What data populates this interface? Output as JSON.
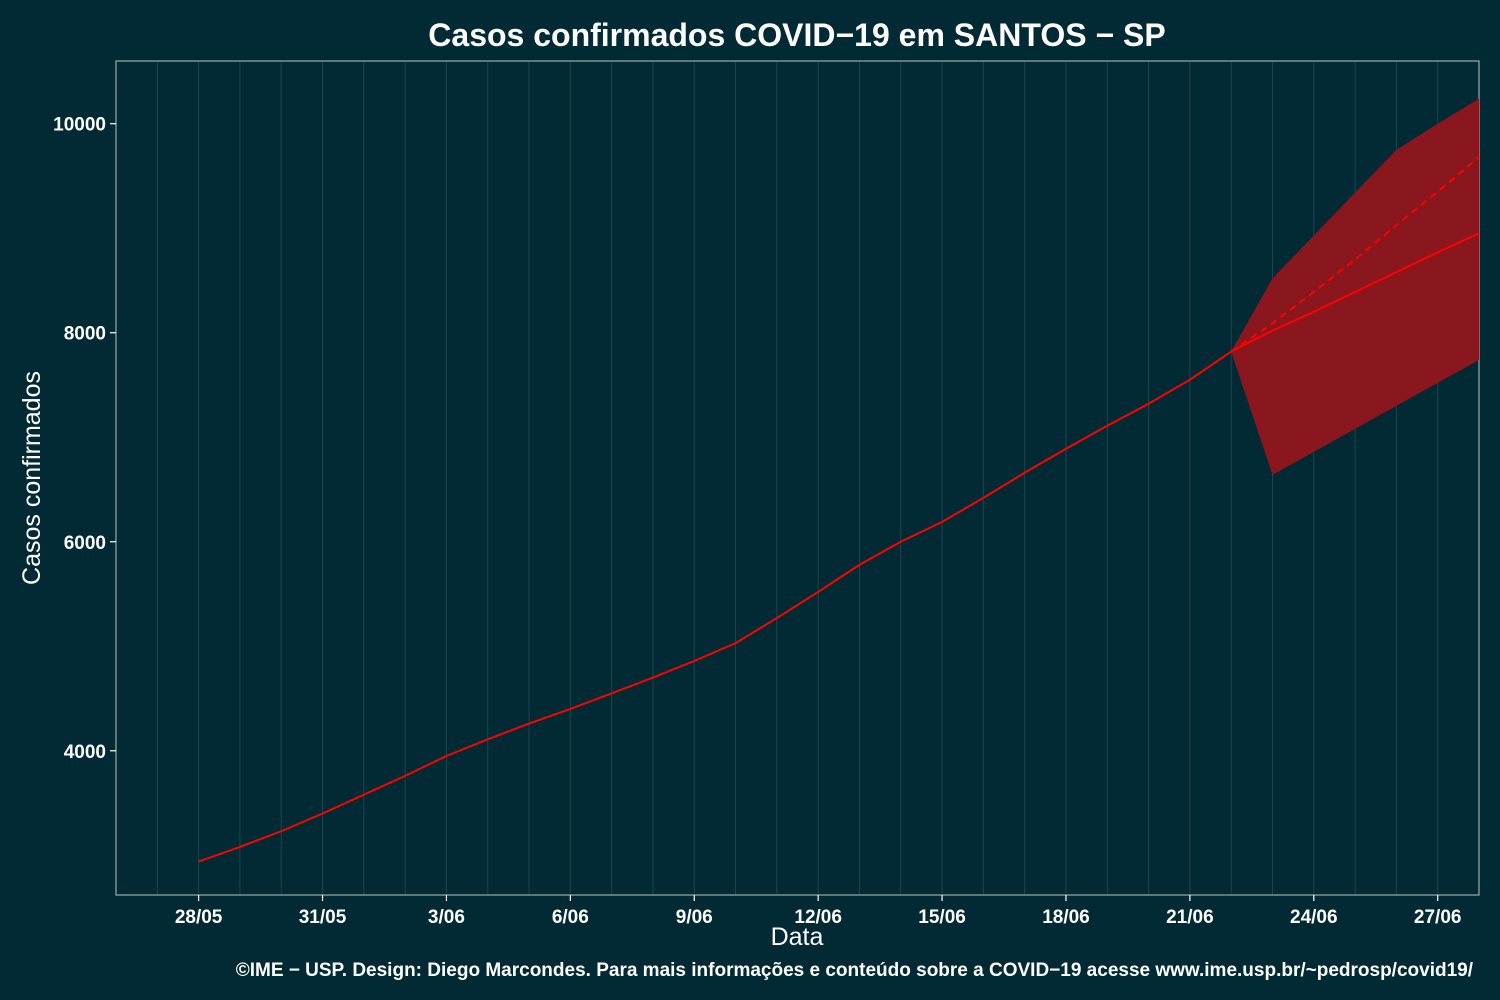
{
  "chart_data": {
    "type": "line",
    "title": "Casos confirmados COVID−19 em SANTOS − SP",
    "xlabel": "Data",
    "ylabel": "Casos confirmados",
    "caption": "©IME − USP. Design: Diego Marcondes. Para mais informações e conteúdo sobre a COVID−19 acesse www.ime.usp.br/~pedrosp/covid19/",
    "x_ticks": [
      "28/05",
      "31/05",
      "3/06",
      "6/06",
      "9/06",
      "12/06",
      "15/06",
      "18/06",
      "21/06",
      "24/06",
      "27/06"
    ],
    "y_ticks": [
      4000,
      6000,
      8000,
      10000
    ],
    "ylim": [
      2620,
      10600
    ],
    "xlim": [
      "26/05",
      "28/06"
    ],
    "grid": true,
    "colors": {
      "background": "#022a35",
      "line": "#ff0000",
      "band": "#8b171e",
      "grid": "#1d4550",
      "frame": "#7d8f94"
    },
    "series": [
      {
        "style": "solid",
        "x": [
          "28/05",
          "29/05",
          "30/05",
          "31/05",
          "1/06",
          "2/06",
          "3/06",
          "4/06",
          "5/06",
          "6/06",
          "7/06",
          "8/06",
          "9/06",
          "10/06",
          "11/06",
          "12/06",
          "13/06",
          "14/06",
          "15/06",
          "16/06",
          "17/06",
          "18/06",
          "19/06",
          "20/06",
          "21/06",
          "22/06"
        ],
        "values": [
          2940,
          3080,
          3230,
          3400,
          3580,
          3760,
          3950,
          4110,
          4260,
          4400,
          4550,
          4700,
          4860,
          5030,
          5270,
          5520,
          5780,
          6000,
          6190,
          6420,
          6660,
          6890,
          7110,
          7320,
          7550,
          7820
        ]
      },
      {
        "style": "solid",
        "x": [
          "22/06",
          "23/06",
          "24/06",
          "25/06",
          "26/06",
          "27/06",
          "28/06"
        ],
        "values": [
          7820,
          8020,
          8200,
          8390,
          8580,
          8770,
          8950
        ]
      },
      {
        "style": "dashed",
        "x": [
          "22/06",
          "23/06",
          "24/06",
          "25/06",
          "26/06",
          "27/06",
          "28/06"
        ],
        "values": [
          7820,
          8090,
          8390,
          8700,
          9030,
          9350,
          9680
        ]
      }
    ],
    "band": {
      "x": [
        "22/06",
        "23/06",
        "24/06",
        "25/06",
        "26/06",
        "27/06",
        "28/06"
      ],
      "lower": [
        7820,
        6640,
        6860,
        7080,
        7300,
        7520,
        7740
      ],
      "upper": [
        7820,
        8520,
        8930,
        9340,
        9750,
        10000,
        10240
      ]
    }
  }
}
